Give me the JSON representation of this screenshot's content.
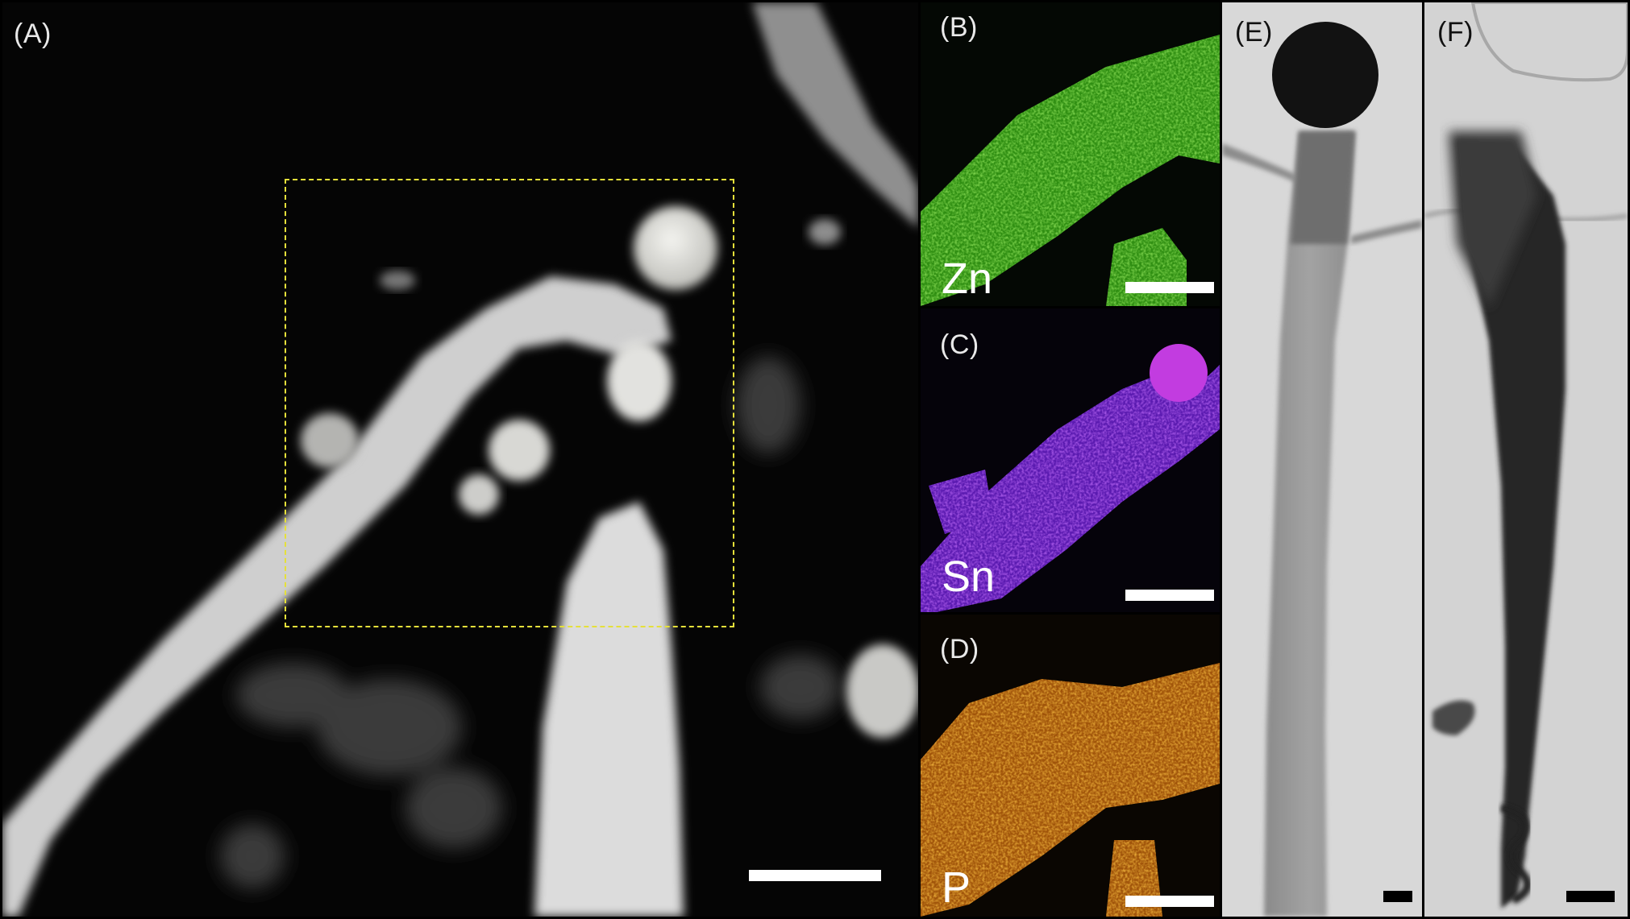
{
  "figure": {
    "panels": [
      {
        "id": "A",
        "label": "(A)"
      },
      {
        "id": "B",
        "label": "(B)",
        "element": "Zn"
      },
      {
        "id": "C",
        "label": "(C)",
        "element": "Sn"
      },
      {
        "id": "D",
        "label": "(D)",
        "element": "P"
      },
      {
        "id": "E",
        "label": "(E)"
      },
      {
        "id": "F",
        "label": "(F)"
      }
    ],
    "colors": {
      "zn_map": "#44c21a",
      "sn_map": "#7a22e6",
      "p_map": "#e87d0c",
      "selection_box": "#e5e03a",
      "scale_bar_light": "#ffffff",
      "scale_bar_dark": "#000000"
    }
  }
}
